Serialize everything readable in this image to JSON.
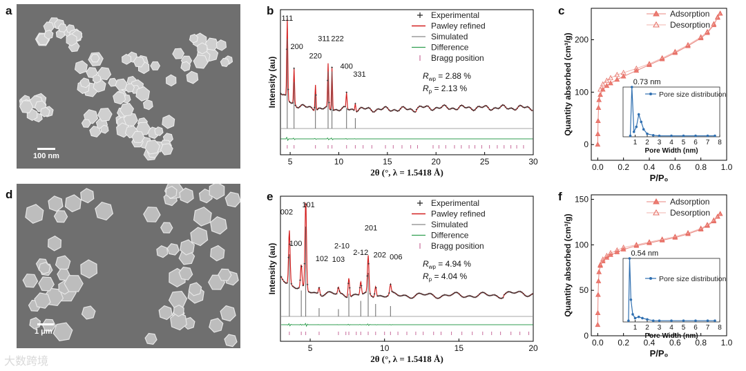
{
  "panels": {
    "a": {
      "letter": "a",
      "scale_label": "100 nm"
    },
    "d": {
      "letter": "d",
      "scale_label": "1 μm"
    },
    "b": {
      "letter": "b"
    },
    "e": {
      "letter": "e"
    },
    "c": {
      "letter": "c"
    },
    "f": {
      "letter": "f"
    }
  },
  "watermark": "大数跨境",
  "chart_data": [
    {
      "id": "b",
      "type": "line",
      "xlabel": "2θ (°, λ = 1.5418 Å)",
      "ylabel": "Intensity (au)",
      "xlim": [
        4,
        30
      ],
      "xticks": [
        5,
        10,
        15,
        20,
        25,
        30
      ],
      "legend": [
        "Experimental",
        "Pawley refined",
        "Simulated",
        "Difference",
        "Bragg position"
      ],
      "legend_position": "top-right",
      "stats": [
        {
          "label": "R",
          "sub": "wp",
          "value": " = 2.88 %"
        },
        {
          "label": "R",
          "sub": "p",
          "value": " =  2.13 %"
        }
      ],
      "peaks": [
        {
          "label": "111",
          "x": 4.7,
          "h": 1.0
        },
        {
          "label": "200",
          "x": 5.4,
          "h": 0.45
        },
        {
          "label": "220",
          "x": 7.6,
          "h": 0.33
        },
        {
          "label": "311",
          "x": 8.9,
          "h": 0.55
        },
        {
          "label": "222",
          "x": 9.3,
          "h": 0.55
        },
        {
          "label": "400",
          "x": 10.8,
          "h": 0.2
        },
        {
          "label": "331",
          "x": 11.7,
          "h": 0.1
        }
      ],
      "bragg_positions": [
        4.7,
        5.4,
        7.6,
        8.9,
        9.3,
        10.8,
        11.7,
        12.5,
        13.4,
        14.8,
        15.6,
        16.5,
        17.4,
        18.1,
        19.7,
        20.3,
        21.0,
        21.9,
        22.6,
        23.4,
        24.0,
        24.7,
        25.5,
        26.3,
        27.0,
        27.7,
        28.3,
        29.0
      ]
    },
    {
      "id": "e",
      "type": "line",
      "xlabel": "2θ (°, λ = 1.5418 Å)",
      "ylabel": "Intensity (au)",
      "xlim": [
        3,
        20
      ],
      "xticks": [
        5,
        10,
        15,
        20
      ],
      "legend": [
        "Experimental",
        "Pawley refined",
        "Simulated",
        "Difference",
        "Bragg position"
      ],
      "legend_position": "top-right",
      "stats": [
        {
          "label": "R",
          "sub": "wp",
          "value": " = 4.94 %"
        },
        {
          "label": "R",
          "sub": "p",
          "value": " = 4.04 %"
        }
      ],
      "peaks": [
        {
          "label": "002",
          "x": 3.6,
          "h": 0.6
        },
        {
          "label": "100",
          "x": 4.4,
          "h": 0.25
        },
        {
          "label": "101",
          "x": 4.7,
          "h": 1.0
        },
        {
          "label": "102",
          "x": 5.6,
          "h": 0.08
        },
        {
          "label": "103",
          "x": 6.9,
          "h": 0.07
        },
        {
          "label": "2-10",
          "x": 7.6,
          "h": 0.22
        },
        {
          "label": "2-12",
          "x": 8.4,
          "h": 0.15
        },
        {
          "label": "201",
          "x": 8.9,
          "h": 0.42
        },
        {
          "label": "202",
          "x": 9.4,
          "h": 0.12
        },
        {
          "label": "006",
          "x": 10.4,
          "h": 0.1
        }
      ],
      "bragg_positions": [
        3.6,
        4.4,
        4.7,
        5.6,
        6.9,
        7.4,
        7.6,
        8.1,
        8.4,
        8.9,
        9.4,
        10.0,
        10.4,
        10.9,
        11.5,
        12.1,
        12.6,
        13.3,
        13.8,
        14.5,
        15.2,
        15.9,
        16.6,
        17.2,
        17.8,
        18.5,
        19.1,
        19.7
      ]
    },
    {
      "id": "c",
      "type": "line",
      "xlabel": "P/P₀",
      "ylabel": "Quantity absorbed (cm³/g)",
      "xlim": [
        -0.05,
        1.0
      ],
      "ylim": [
        -30,
        260
      ],
      "xticks": [
        0.0,
        0.2,
        0.4,
        0.6,
        0.8,
        1.0
      ],
      "yticks": [
        0,
        100,
        200
      ],
      "legend": [
        "Adsorption",
        "Desorption"
      ],
      "legend_position": "top-left",
      "series": [
        {
          "name": "Adsorption",
          "x": [
            0.0,
            0.001,
            0.003,
            0.006,
            0.01,
            0.02,
            0.04,
            0.07,
            0.1,
            0.15,
            0.2,
            0.3,
            0.4,
            0.5,
            0.6,
            0.7,
            0.8,
            0.85,
            0.9,
            0.93,
            0.95
          ],
          "y": [
            0,
            20,
            45,
            70,
            85,
            95,
            105,
            112,
            117,
            124,
            130,
            141,
            152,
            163,
            175,
            188,
            203,
            213,
            228,
            242,
            250
          ]
        },
        {
          "name": "Desorption",
          "x": [
            0.95,
            0.93,
            0.9,
            0.85,
            0.8,
            0.7,
            0.6,
            0.5,
            0.4,
            0.3,
            0.2,
            0.15,
            0.1,
            0.07,
            0.04,
            0.02
          ],
          "y": [
            250,
            243,
            230,
            215,
            205,
            190,
            177,
            165,
            154,
            145,
            137,
            133,
            127,
            122,
            115,
            105
          ]
        }
      ],
      "inset": {
        "xlabel": "Pore Width (nm)",
        "xlim": [
          0,
          8
        ],
        "xticks": [
          1,
          2,
          3,
          4,
          5,
          6,
          7,
          8
        ],
        "peak_label": "0.73 nm",
        "legend": [
          "Pore size distribution"
        ],
        "x": [
          0.6,
          0.73,
          0.9,
          1.1,
          1.3,
          1.5,
          1.7,
          2.0,
          2.5,
          3,
          4,
          5,
          6,
          7,
          7.6
        ],
        "y": [
          0.02,
          1.0,
          0.1,
          0.2,
          0.45,
          0.3,
          0.15,
          0.06,
          0.03,
          0.02,
          0.02,
          0.02,
          0.02,
          0.02,
          0.02
        ]
      }
    },
    {
      "id": "f",
      "type": "line",
      "xlabel": "P/P₀",
      "ylabel": "Quantity absorbed (cm³/g)",
      "xlim": [
        -0.05,
        1.0
      ],
      "ylim": [
        0,
        155
      ],
      "xticks": [
        0.0,
        0.2,
        0.4,
        0.6,
        0.8,
        1.0
      ],
      "yticks": [
        0,
        50,
        100,
        150
      ],
      "legend": [
        "Adsorption",
        "Desorption"
      ],
      "legend_position": "top-left",
      "series": [
        {
          "name": "Adsorption",
          "x": [
            0.0,
            0.001,
            0.003,
            0.006,
            0.01,
            0.02,
            0.04,
            0.07,
            0.1,
            0.15,
            0.2,
            0.3,
            0.4,
            0.5,
            0.6,
            0.7,
            0.8,
            0.85,
            0.9,
            0.93,
            0.95
          ],
          "y": [
            12,
            25,
            45,
            60,
            70,
            77,
            82,
            86,
            89,
            92,
            95,
            99,
            102,
            105,
            108,
            112,
            117,
            121,
            126,
            131,
            134
          ]
        },
        {
          "name": "Desorption",
          "x": [
            0.95,
            0.93,
            0.9,
            0.85,
            0.8,
            0.7,
            0.6,
            0.5,
            0.4,
            0.3,
            0.2,
            0.15,
            0.1,
            0.07,
            0.04,
            0.02
          ],
          "y": [
            134,
            131,
            127,
            122,
            118,
            113,
            109,
            106,
            103,
            100,
            97,
            94,
            91,
            88,
            84,
            78
          ]
        }
      ],
      "inset": {
        "xlabel": "Pore Width (nm)",
        "xlim": [
          0,
          8
        ],
        "xticks": [
          1,
          2,
          3,
          4,
          5,
          6,
          7,
          8
        ],
        "peak_label": "0.54 nm",
        "legend": [
          "Pore size distribution"
        ],
        "x": [
          0.45,
          0.54,
          0.65,
          0.8,
          1.0,
          1.3,
          1.6,
          2.0,
          2.5,
          3,
          4,
          5,
          6,
          7,
          7.6
        ],
        "y": [
          0.02,
          1.0,
          0.35,
          0.12,
          0.06,
          0.08,
          0.06,
          0.04,
          0.02,
          0.02,
          0.02,
          0.02,
          0.02,
          0.02,
          0.02
        ]
      }
    }
  ]
}
